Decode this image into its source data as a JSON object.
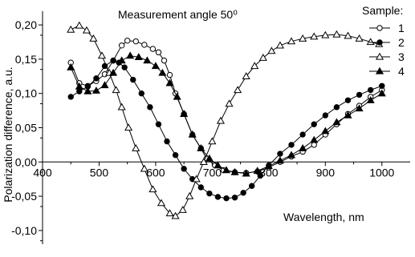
{
  "chart_data": {
    "type": "line",
    "title": "Measurement angle 50⁰",
    "xlabel": "Wavelength, nm",
    "ylabel": "Polarization difference, a.u.",
    "xlim": [
      400,
      1050
    ],
    "ylim": [
      -0.12,
      0.22
    ],
    "x_ticks": [
      400,
      500,
      600,
      700,
      800,
      900,
      1000
    ],
    "x_tick_labels": [
      "400",
      "500",
      "600",
      "700",
      "800",
      "900",
      "1000"
    ],
    "y_ticks": [
      -0.1,
      -0.05,
      0.0,
      0.05,
      0.1,
      0.15,
      0.2
    ],
    "y_tick_labels": [
      "-0,10",
      "-0,05",
      "0,00",
      "0,05",
      "0,10",
      "0,15",
      "0,20"
    ],
    "legend_title": "Sample:",
    "legend_position": "top-right",
    "grid": false,
    "series": [
      {
        "name": "1",
        "marker": "open-circle",
        "color": "#000000",
        "points": [
          [
            450,
            0.145
          ],
          [
            465,
            0.115
          ],
          [
            480,
            0.111
          ],
          [
            495,
            0.118
          ],
          [
            510,
            0.128
          ],
          [
            525,
            0.148
          ],
          [
            540,
            0.17
          ],
          [
            550,
            0.177
          ],
          [
            565,
            0.176
          ],
          [
            580,
            0.171
          ],
          [
            595,
            0.165
          ],
          [
            605,
            0.16
          ],
          [
            615,
            0.148
          ],
          [
            625,
            0.127
          ],
          [
            635,
            0.1
          ],
          [
            650,
            0.07
          ],
          [
            665,
            0.04
          ],
          [
            680,
            0.02
          ],
          [
            690,
            0.005
          ],
          [
            705,
            -0.005
          ],
          [
            720,
            -0.012
          ],
          [
            740,
            -0.015
          ],
          [
            760,
            -0.016
          ],
          [
            780,
            -0.014
          ],
          [
            800,
            -0.008
          ],
          [
            820,
            0.0
          ],
          [
            840,
            0.008
          ],
          [
            860,
            0.015
          ],
          [
            880,
            0.025
          ],
          [
            900,
            0.04
          ],
          [
            920,
            0.055
          ],
          [
            940,
            0.07
          ],
          [
            960,
            0.082
          ],
          [
            980,
            0.095
          ],
          [
            1000,
            0.105
          ]
        ]
      },
      {
        "name": "2",
        "marker": "filled-circle",
        "color": "#000000",
        "points": [
          [
            450,
            0.095
          ],
          [
            465,
            0.103
          ],
          [
            480,
            0.11
          ],
          [
            495,
            0.122
          ],
          [
            510,
            0.14
          ],
          [
            525,
            0.148
          ],
          [
            535,
            0.145
          ],
          [
            545,
            0.138
          ],
          [
            560,
            0.12
          ],
          [
            575,
            0.1
          ],
          [
            590,
            0.08
          ],
          [
            605,
            0.055
          ],
          [
            620,
            0.03
          ],
          [
            635,
            0.01
          ],
          [
            650,
            -0.01
          ],
          [
            665,
            -0.025
          ],
          [
            680,
            -0.037
          ],
          [
            695,
            -0.046
          ],
          [
            710,
            -0.051
          ],
          [
            725,
            -0.053
          ],
          [
            740,
            -0.052
          ],
          [
            755,
            -0.045
          ],
          [
            770,
            -0.035
          ],
          [
            785,
            -0.02
          ],
          [
            800,
            -0.005
          ],
          [
            820,
            0.012
          ],
          [
            840,
            0.025
          ],
          [
            860,
            0.04
          ],
          [
            880,
            0.055
          ],
          [
            900,
            0.068
          ],
          [
            920,
            0.08
          ],
          [
            940,
            0.09
          ],
          [
            960,
            0.098
          ],
          [
            980,
            0.105
          ],
          [
            1000,
            0.111
          ]
        ]
      },
      {
        "name": "3",
        "marker": "open-triangle",
        "color": "#000000",
        "points": [
          [
            450,
            0.193
          ],
          [
            465,
            0.199
          ],
          [
            478,
            0.192
          ],
          [
            490,
            0.18
          ],
          [
            505,
            0.155
          ],
          [
            518,
            0.13
          ],
          [
            530,
            0.105
          ],
          [
            540,
            0.08
          ],
          [
            552,
            0.05
          ],
          [
            565,
            0.02
          ],
          [
            580,
            -0.01
          ],
          [
            595,
            -0.04
          ],
          [
            610,
            -0.06
          ],
          [
            625,
            -0.075
          ],
          [
            635,
            -0.079
          ],
          [
            648,
            -0.07
          ],
          [
            660,
            -0.05
          ],
          [
            672,
            -0.025
          ],
          [
            685,
            0.0
          ],
          [
            700,
            0.03
          ],
          [
            715,
            0.06
          ],
          [
            730,
            0.085
          ],
          [
            745,
            0.105
          ],
          [
            760,
            0.125
          ],
          [
            775,
            0.14
          ],
          [
            790,
            0.152
          ],
          [
            805,
            0.162
          ],
          [
            820,
            0.17
          ],
          [
            840,
            0.176
          ],
          [
            860,
            0.18
          ],
          [
            880,
            0.183
          ],
          [
            900,
            0.185
          ],
          [
            920,
            0.186
          ],
          [
            940,
            0.184
          ],
          [
            960,
            0.18
          ],
          [
            980,
            0.175
          ],
          [
            995,
            0.172
          ]
        ]
      },
      {
        "name": "4",
        "marker": "filled-triangle",
        "color": "#000000",
        "points": [
          [
            450,
            0.138
          ],
          [
            465,
            0.11
          ],
          [
            480,
            0.103
          ],
          [
            495,
            0.104
          ],
          [
            510,
            0.112
          ],
          [
            525,
            0.13
          ],
          [
            540,
            0.148
          ],
          [
            555,
            0.155
          ],
          [
            570,
            0.153
          ],
          [
            585,
            0.148
          ],
          [
            600,
            0.14
          ],
          [
            612,
            0.13
          ],
          [
            625,
            0.115
          ],
          [
            638,
            0.095
          ],
          [
            650,
            0.07
          ],
          [
            665,
            0.04
          ],
          [
            680,
            0.02
          ],
          [
            695,
            0.005
          ],
          [
            710,
            -0.005
          ],
          [
            725,
            -0.012
          ],
          [
            740,
            -0.015
          ],
          [
            760,
            -0.017
          ],
          [
            780,
            -0.013
          ],
          [
            800,
            -0.006
          ],
          [
            820,
            0.002
          ],
          [
            840,
            0.01
          ],
          [
            860,
            0.02
          ],
          [
            880,
            0.032
          ],
          [
            900,
            0.045
          ],
          [
            920,
            0.058
          ],
          [
            940,
            0.068
          ],
          [
            960,
            0.078
          ],
          [
            980,
            0.09
          ],
          [
            1000,
            0.1
          ]
        ]
      }
    ]
  }
}
